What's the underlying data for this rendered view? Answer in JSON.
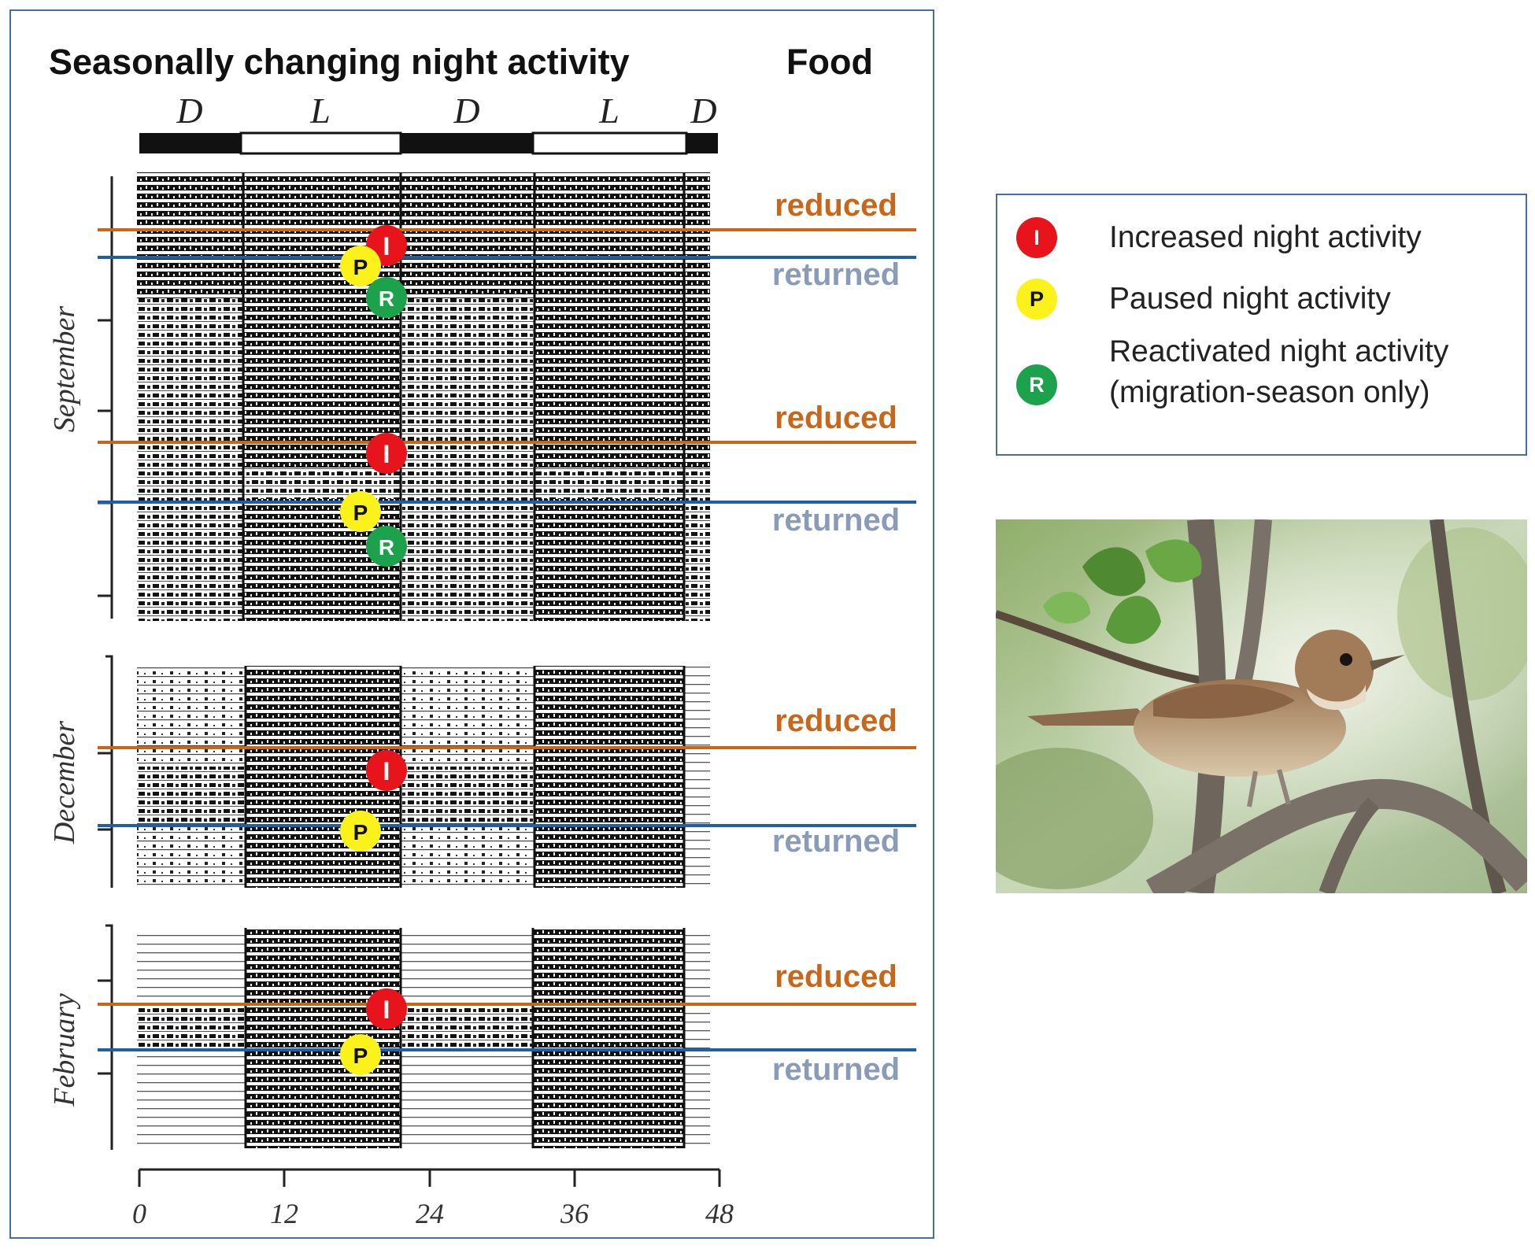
{
  "title": "Seasonally changing night activity",
  "food_header": "Food",
  "phase_labels": [
    "D",
    "L",
    "D",
    "L",
    "D"
  ],
  "months": [
    "September",
    "December",
    "February"
  ],
  "x_axis_ticks": [
    "0",
    "12",
    "24",
    "36",
    "48"
  ],
  "food_labels": {
    "reduced": "reduced",
    "returned": "returned"
  },
  "marker_letters": {
    "increased": "I",
    "paused": "P",
    "reactivated": "R"
  },
  "legend": {
    "items": [
      {
        "letter": "I",
        "color": "#e8141c",
        "text_color": "#ffffff",
        "lines": [
          "Increased night activity"
        ]
      },
      {
        "letter": "P",
        "color": "#fbf21c",
        "text_color": "#111111",
        "lines": [
          "Paused night activity"
        ]
      },
      {
        "letter": "R",
        "color": "#1ca24a",
        "text_color": "#ffffff",
        "lines": [
          "Reactivated night activity",
          "(migration-season only)"
        ]
      }
    ]
  },
  "colors": {
    "reduced_line": "#c8661a",
    "returned_line": "#1f5fa8",
    "reduced_text": "#c8661a",
    "returned_text": "#8a9bb8",
    "frame": "#4a6f9c"
  }
}
